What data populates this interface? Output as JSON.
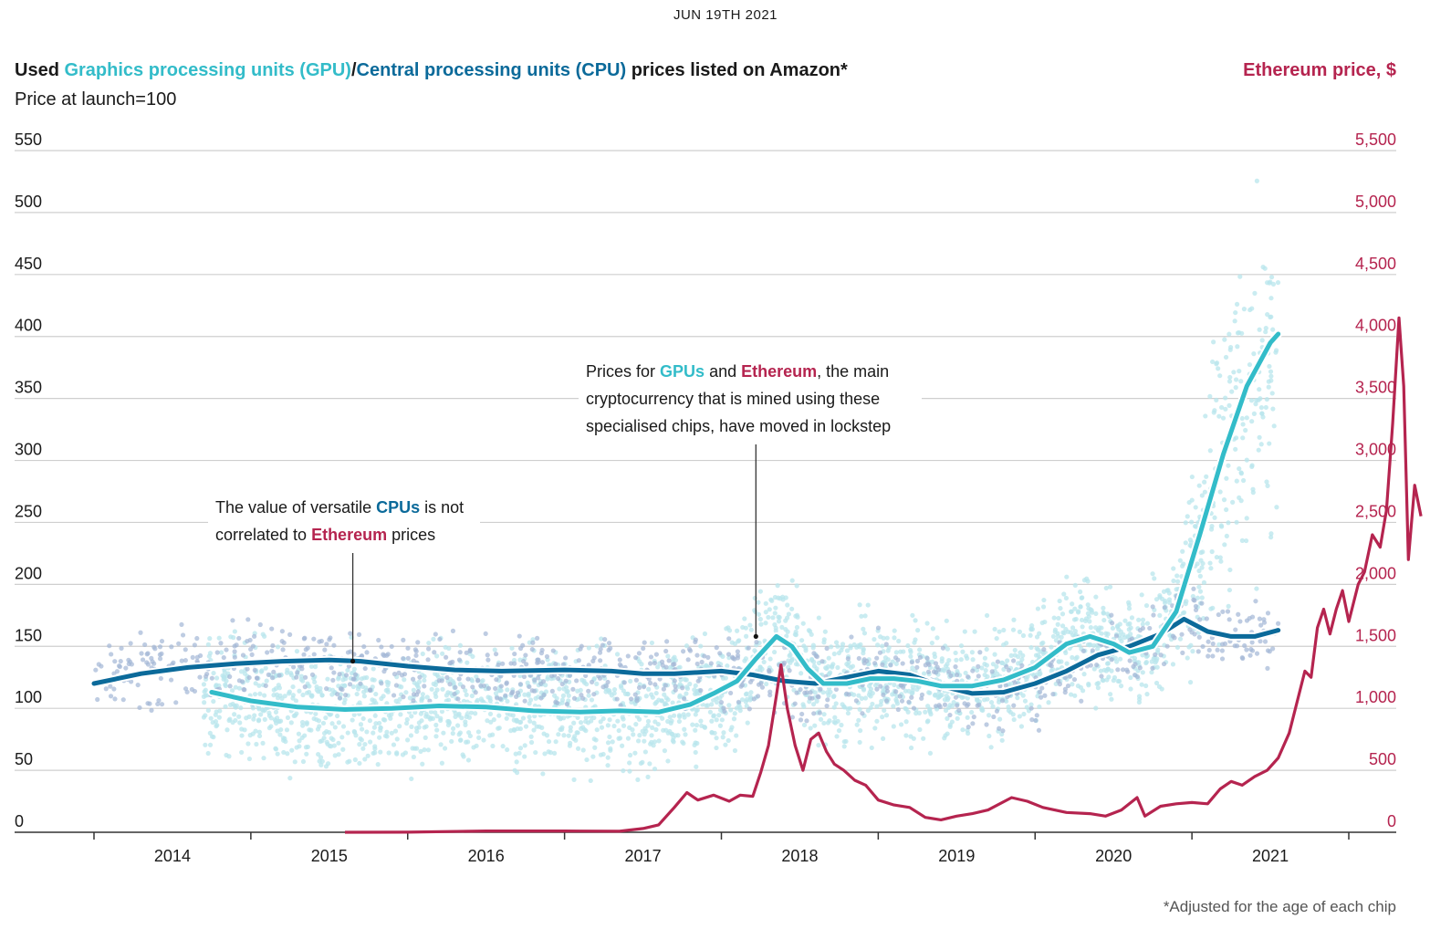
{
  "date": "JUN 19TH 2021",
  "title": {
    "used": "Used ",
    "gpu": "Graphics processing units (GPU)",
    "slash": "/",
    "cpu": "Central processing units (CPU)",
    "rest": " prices listed on Amazon*"
  },
  "subtitle": "Price at launch=100",
  "right_title": "Ethereum price, $",
  "footnote": "*Adjusted for the age of each chip",
  "colors": {
    "gpu": "#33bcc9",
    "cpu": "#0b6a9a",
    "eth": "#b5244f",
    "gpu_dots": "#b8e6ec",
    "cpu_dots": "#a3b6d6",
    "grid": "#cfcfcf"
  },
  "annotations": [
    {
      "lines": [
        [
          {
            "t": "The value of versatile "
          },
          {
            "t": "CPUs",
            "c": "cpu"
          },
          {
            "t": " is not"
          }
        ],
        [
          {
            "t": "correlated to "
          },
          {
            "t": "Ethereum",
            "c": "eth"
          },
          {
            "t": " prices"
          }
        ]
      ],
      "point": {
        "x": 2015.15,
        "y": 138
      }
    },
    {
      "lines": [
        [
          {
            "t": "Prices for "
          },
          {
            "t": "GPUs",
            "c": "gpu"
          },
          {
            "t": " and "
          },
          {
            "t": "Ethereum",
            "c": "eth"
          },
          {
            "t": ", the main"
          }
        ],
        [
          {
            "t": "cryptocurrency that is mined using these"
          }
        ],
        [
          {
            "t": "specialised chips, have moved in lockstep"
          }
        ]
      ],
      "point": {
        "x": 2017.72,
        "y": 158
      }
    }
  ],
  "chart_data": {
    "type": "line",
    "x_axis": {
      "ticks": [
        "2014",
        "2015",
        "2016",
        "2017",
        "2018",
        "2019",
        "2020",
        "2021"
      ],
      "range": [
        2013.5,
        2022.3
      ]
    },
    "y_left": {
      "ticks": [
        "0",
        "50",
        "100",
        "150",
        "200",
        "250",
        "300",
        "350",
        "400",
        "450",
        "500",
        "550"
      ],
      "range": [
        0,
        550
      ]
    },
    "y_right": {
      "label": "Ethereum price, $",
      "ticks": [
        "0",
        "500",
        "1,000",
        "1,500",
        "2,000",
        "2,500",
        "3,000",
        "3,500",
        "4,000",
        "4,500",
        "5,000",
        "5,500"
      ],
      "range": [
        0,
        5500
      ]
    },
    "grid": true,
    "series": [
      {
        "name": "Central processing units (CPU)",
        "axis": "left",
        "points": [
          [
            2013.5,
            120
          ],
          [
            2013.8,
            128
          ],
          [
            2014.1,
            133
          ],
          [
            2014.4,
            136
          ],
          [
            2014.7,
            138
          ],
          [
            2015.0,
            139
          ],
          [
            2015.2,
            138
          ],
          [
            2015.5,
            134
          ],
          [
            2015.8,
            131
          ],
          [
            2016.1,
            130
          ],
          [
            2016.5,
            131
          ],
          [
            2016.8,
            130
          ],
          [
            2017.0,
            128
          ],
          [
            2017.2,
            128
          ],
          [
            2017.5,
            130
          ],
          [
            2017.7,
            127
          ],
          [
            2017.9,
            122
          ],
          [
            2018.1,
            120
          ],
          [
            2018.3,
            125
          ],
          [
            2018.5,
            130
          ],
          [
            2018.7,
            127
          ],
          [
            2018.9,
            118
          ],
          [
            2019.1,
            112
          ],
          [
            2019.3,
            113
          ],
          [
            2019.5,
            120
          ],
          [
            2019.7,
            130
          ],
          [
            2019.9,
            143
          ],
          [
            2020.1,
            150
          ],
          [
            2020.3,
            160
          ],
          [
            2020.45,
            172
          ],
          [
            2020.6,
            162
          ],
          [
            2020.75,
            158
          ],
          [
            2020.9,
            158
          ],
          [
            2021.05,
            163
          ]
        ]
      },
      {
        "name": "Graphics processing units (GPU)",
        "axis": "left",
        "points": [
          [
            2014.25,
            113
          ],
          [
            2014.5,
            106
          ],
          [
            2014.8,
            101
          ],
          [
            2015.1,
            99
          ],
          [
            2015.4,
            100
          ],
          [
            2015.7,
            102
          ],
          [
            2016.0,
            101
          ],
          [
            2016.3,
            98
          ],
          [
            2016.6,
            97
          ],
          [
            2016.85,
            98
          ],
          [
            2017.1,
            97
          ],
          [
            2017.3,
            103
          ],
          [
            2017.45,
            112
          ],
          [
            2017.6,
            122
          ],
          [
            2017.72,
            140
          ],
          [
            2017.85,
            158
          ],
          [
            2017.95,
            150
          ],
          [
            2018.05,
            132
          ],
          [
            2018.15,
            120
          ],
          [
            2018.3,
            120
          ],
          [
            2018.45,
            124
          ],
          [
            2018.6,
            124
          ],
          [
            2018.75,
            122
          ],
          [
            2018.9,
            118
          ],
          [
            2019.1,
            118
          ],
          [
            2019.3,
            123
          ],
          [
            2019.5,
            133
          ],
          [
            2019.7,
            152
          ],
          [
            2019.85,
            158
          ],
          [
            2020.0,
            152
          ],
          [
            2020.1,
            145
          ],
          [
            2020.25,
            150
          ],
          [
            2020.4,
            178
          ],
          [
            2020.55,
            240
          ],
          [
            2020.7,
            305
          ],
          [
            2020.85,
            360
          ],
          [
            2021.0,
            395
          ],
          [
            2021.05,
            402
          ]
        ]
      },
      {
        "name": "Ethereum",
        "axis": "right",
        "points": [
          [
            2015.1,
            0
          ],
          [
            2015.5,
            1
          ],
          [
            2016.0,
            10
          ],
          [
            2016.5,
            10
          ],
          [
            2016.85,
            8
          ],
          [
            2017.0,
            30
          ],
          [
            2017.1,
            60
          ],
          [
            2017.2,
            200
          ],
          [
            2017.28,
            320
          ],
          [
            2017.35,
            260
          ],
          [
            2017.45,
            300
          ],
          [
            2017.55,
            250
          ],
          [
            2017.62,
            300
          ],
          [
            2017.7,
            290
          ],
          [
            2017.75,
            480
          ],
          [
            2017.8,
            700
          ],
          [
            2017.85,
            1100
          ],
          [
            2017.88,
            1350
          ],
          [
            2017.92,
            1000
          ],
          [
            2017.97,
            700
          ],
          [
            2018.02,
            500
          ],
          [
            2018.07,
            750
          ],
          [
            2018.12,
            800
          ],
          [
            2018.17,
            650
          ],
          [
            2018.22,
            550
          ],
          [
            2018.28,
            500
          ],
          [
            2018.35,
            420
          ],
          [
            2018.42,
            380
          ],
          [
            2018.5,
            260
          ],
          [
            2018.6,
            220
          ],
          [
            2018.7,
            200
          ],
          [
            2018.8,
            120
          ],
          [
            2018.9,
            100
          ],
          [
            2019.0,
            130
          ],
          [
            2019.1,
            150
          ],
          [
            2019.2,
            180
          ],
          [
            2019.35,
            280
          ],
          [
            2019.45,
            250
          ],
          [
            2019.55,
            200
          ],
          [
            2019.7,
            160
          ],
          [
            2019.85,
            150
          ],
          [
            2019.95,
            130
          ],
          [
            2020.05,
            180
          ],
          [
            2020.15,
            280
          ],
          [
            2020.2,
            130
          ],
          [
            2020.3,
            210
          ],
          [
            2020.4,
            230
          ],
          [
            2020.5,
            240
          ],
          [
            2020.6,
            230
          ],
          [
            2020.68,
            350
          ],
          [
            2020.75,
            410
          ],
          [
            2020.82,
            380
          ],
          [
            2020.9,
            450
          ],
          [
            2020.98,
            500
          ],
          [
            2021.05,
            600
          ],
          [
            2021.12,
            800
          ],
          [
            2021.18,
            1100
          ],
          [
            2021.22,
            1300
          ],
          [
            2021.26,
            1250
          ],
          [
            2021.3,
            1650
          ],
          [
            2021.34,
            1800
          ],
          [
            2021.38,
            1600
          ],
          [
            2021.42,
            1800
          ],
          [
            2021.46,
            1950
          ],
          [
            2021.5,
            1700
          ],
          [
            2021.56,
            2000
          ],
          [
            2021.6,
            2100
          ],
          [
            2021.65,
            2400
          ],
          [
            2021.7,
            2300
          ],
          [
            2021.74,
            2600
          ],
          [
            2021.78,
            3300
          ],
          [
            2021.82,
            4150
          ],
          [
            2021.85,
            3600
          ],
          [
            2021.88,
            2200
          ],
          [
            2021.92,
            2800
          ],
          [
            2021.96,
            2550
          ]
        ]
      }
    ]
  }
}
